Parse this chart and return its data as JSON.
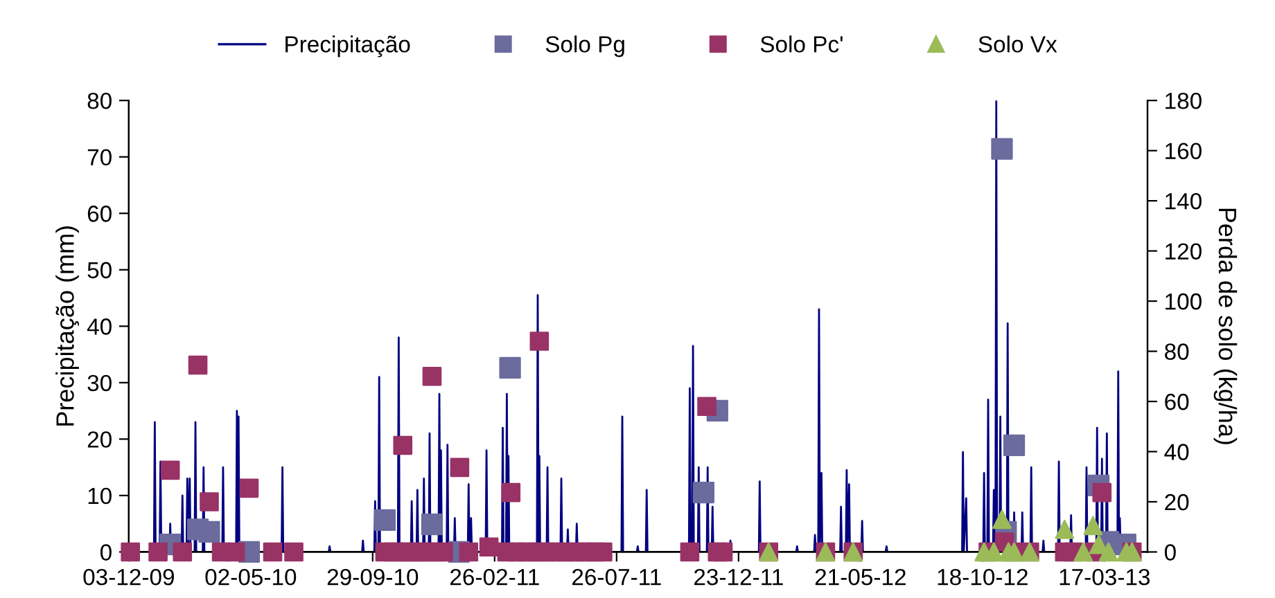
{
  "chart_data": {
    "type": "line",
    "ylabel": "Precipitação (mm)",
    "y2label": "Perda de solo (kg/ha)",
    "xlim": [
      "2009-12-03",
      "2013-05-09"
    ],
    "xticks": [
      {
        "value": "2009-12-03",
        "label": "03-12-09"
      },
      {
        "value": "2010-05-02",
        "label": "02-05-10"
      },
      {
        "value": "2010-09-29",
        "label": "29-09-10"
      },
      {
        "value": "2011-02-26",
        "label": "26-02-11"
      },
      {
        "value": "2011-07-26",
        "label": "26-07-11"
      },
      {
        "value": "2011-12-23",
        "label": "23-12-11"
      },
      {
        "value": "2012-05-21",
        "label": "21-05-12"
      },
      {
        "value": "2012-10-18",
        "label": "18-10-12"
      },
      {
        "value": "2013-03-17",
        "label": "17-03-13"
      }
    ],
    "ylim": [
      0,
      80
    ],
    "yticks": [
      0,
      10,
      20,
      30,
      40,
      50,
      60,
      70,
      80
    ],
    "y2lim": [
      0,
      180
    ],
    "y2ticks": [
      0,
      20,
      40,
      60,
      80,
      100,
      120,
      140,
      160,
      180
    ],
    "grid": false,
    "legend": "top",
    "series": [
      {
        "name": "Precipitação",
        "color": "#000080",
        "marker": "none",
        "line_style": "solid",
        "x": [
          "2009-12-03",
          "2010-01-03",
          "2010-01-04",
          "2010-01-05",
          "2010-01-10",
          "2010-01-11",
          "2010-01-12",
          "2010-01-22",
          "2010-01-23",
          "2010-01-24",
          "2010-02-06",
          "2010-02-07",
          "2010-02-08",
          "2010-02-12",
          "2010-02-13",
          "2010-02-14",
          "2010-02-16",
          "2010-02-17",
          "2010-02-22",
          "2010-02-23",
          "2010-02-24",
          "2010-03-04",
          "2010-03-05",
          "2010-03-06",
          "2010-03-28",
          "2010-03-29",
          "2010-03-30",
          "2010-04-14",
          "2010-04-15",
          "2010-04-16",
          "2010-04-17",
          "2010-04-18",
          "2010-06-09",
          "2010-06-10",
          "2010-06-11",
          "2010-08-06",
          "2010-08-07",
          "2010-08-08",
          "2010-09-16",
          "2010-09-17",
          "2010-09-18",
          "2010-10-01",
          "2010-10-02",
          "2010-10-03",
          "2010-10-06",
          "2010-10-07",
          "2010-10-08",
          "2010-10-30",
          "2010-10-31",
          "2010-11-01",
          "2010-11-15",
          "2010-11-16",
          "2010-11-17",
          "2010-11-22",
          "2010-11-23",
          "2010-11-24",
          "2010-11-30",
          "2010-12-01",
          "2010-12-02",
          "2010-12-07",
          "2010-12-08",
          "2010-12-09",
          "2010-12-19",
          "2010-12-20",
          "2010-12-21",
          "2010-12-22",
          "2010-12-23",
          "2010-12-29",
          "2010-12-30",
          "2010-12-31",
          "2011-01-07",
          "2011-01-08",
          "2011-01-09",
          "2011-01-24",
          "2011-01-25",
          "2011-01-26",
          "2011-01-27",
          "2011-01-28",
          "2011-01-29",
          "2011-02-15",
          "2011-02-16",
          "2011-02-17",
          "2011-03-07",
          "2011-03-08",
          "2011-03-09",
          "2011-03-12",
          "2011-03-13",
          "2011-03-14",
          "2011-03-15",
          "2011-03-16",
          "2011-04-19",
          "2011-04-20",
          "2011-04-21",
          "2011-04-22",
          "2011-04-23",
          "2011-05-01",
          "2011-05-02",
          "2011-05-03",
          "2011-05-18",
          "2011-05-19",
          "2011-05-20",
          "2011-05-26",
          "2011-05-27",
          "2011-05-28",
          "2011-06-06",
          "2011-06-07",
          "2011-06-08",
          "2011-08-01",
          "2011-08-02",
          "2011-08-03",
          "2011-08-20",
          "2011-08-21",
          "2011-08-22",
          "2011-08-31",
          "2011-09-01",
          "2011-09-02",
          "2011-10-23",
          "2011-10-24",
          "2011-10-25",
          "2011-10-27",
          "2011-10-28",
          "2011-10-29",
          "2011-11-03",
          "2011-11-04",
          "2011-11-05",
          "2011-11-14",
          "2011-11-15",
          "2011-11-16",
          "2011-11-20",
          "2011-11-21",
          "2011-11-22",
          "2011-12-12",
          "2011-12-13",
          "2011-12-14",
          "2012-01-17",
          "2012-01-18",
          "2012-01-19",
          "2012-03-03",
          "2012-03-04",
          "2012-03-05",
          "2012-03-25",
          "2012-03-26",
          "2012-03-27",
          "2012-03-30",
          "2012-03-31",
          "2012-04-01",
          "2012-04-03",
          "2012-04-04",
          "2012-04-26",
          "2012-04-27",
          "2012-04-28",
          "2012-05-03",
          "2012-05-04",
          "2012-05-05",
          "2012-05-07",
          "2012-05-08",
          "2012-05-22",
          "2012-05-23",
          "2012-05-24",
          "2012-06-21",
          "2012-06-22",
          "2012-06-23",
          "2012-09-23",
          "2012-09-24",
          "2012-09-25",
          "2012-09-28",
          "2012-09-29",
          "2012-10-19",
          "2012-10-20",
          "2012-10-21",
          "2012-10-24",
          "2012-10-25",
          "2012-10-26",
          "2012-10-31",
          "2012-11-01",
          "2012-11-02",
          "2012-11-03",
          "2012-11-04",
          "2012-11-05",
          "2012-11-08",
          "2012-11-09",
          "2012-11-10",
          "2012-11-17",
          "2012-11-18",
          "2012-11-19",
          "2012-11-25",
          "2012-11-26",
          "2012-11-27",
          "2012-12-05",
          "2012-12-06",
          "2012-12-07",
          "2012-12-16",
          "2012-12-17",
          "2012-12-18",
          "2012-12-31",
          "2013-01-01",
          "2013-01-02",
          "2013-01-19",
          "2013-01-20",
          "2013-01-21",
          "2013-02-03",
          "2013-02-04",
          "2013-02-05",
          "2013-02-22",
          "2013-02-23",
          "2013-02-24",
          "2013-03-07",
          "2013-03-08",
          "2013-03-09",
          "2013-03-13",
          "2013-03-14",
          "2013-03-15",
          "2013-03-19",
          "2013-03-20",
          "2013-03-21",
          "2013-03-26",
          "2013-03-27",
          "2013-03-28",
          "2013-04-02",
          "2013-04-03",
          "2013-04-04",
          "2013-04-05",
          "2013-04-06",
          "2013-04-20"
        ],
        "values": [
          0,
          0,
          23,
          0,
          0,
          16,
          0,
          0,
          5,
          0,
          0,
          10,
          0,
          0,
          13,
          0,
          13,
          0,
          0,
          23,
          0,
          0,
          15,
          0,
          0,
          15,
          0,
          0,
          25,
          0,
          24,
          0,
          0,
          15,
          0,
          0,
          1,
          0,
          0,
          2,
          0,
          0,
          9,
          0,
          0,
          31,
          0,
          0,
          38,
          0,
          0,
          9,
          0,
          0,
          11,
          0,
          0,
          13,
          0,
          0,
          21,
          0,
          0,
          28,
          0,
          18,
          0,
          0,
          19,
          0,
          0,
          6,
          0,
          0,
          12,
          0,
          0,
          6,
          0,
          0,
          18,
          0,
          0,
          22,
          0,
          0,
          28,
          0,
          17,
          0,
          0,
          45.5,
          0,
          17,
          0,
          0,
          15,
          0,
          0,
          13,
          0,
          0,
          4,
          0,
          0,
          5,
          0,
          0,
          24,
          0,
          0,
          1,
          0,
          0,
          11,
          0,
          0,
          29,
          0,
          0,
          36.5,
          0,
          0,
          15,
          0,
          0,
          15,
          0,
          0,
          8,
          0,
          0,
          2,
          0,
          0,
          12.5,
          0,
          0,
          1,
          0,
          0,
          3,
          0,
          0,
          43,
          0,
          14,
          0,
          0,
          8,
          0,
          0,
          14.5,
          0,
          12,
          0,
          0,
          5.5,
          0,
          0,
          1,
          0,
          0,
          17.7,
          0,
          9.5,
          0,
          0,
          14,
          0,
          0,
          27,
          0,
          0,
          11,
          0,
          0,
          80,
          0,
          0,
          24,
          0,
          0,
          40.5,
          0,
          0,
          7,
          0,
          0,
          7,
          0,
          0,
          15,
          0,
          0,
          2,
          0,
          0,
          16,
          0,
          0,
          6.5,
          0,
          0,
          15,
          0,
          0,
          22,
          0,
          0,
          16.5,
          0,
          0,
          21,
          0,
          0,
          3,
          0,
          0,
          32,
          0,
          6,
          0,
          0
        ]
      },
      {
        "name": "Solo Pg",
        "type": "scatter",
        "axis": "y2",
        "color": "#6b6b9e",
        "marker": "square",
        "x": [
          "2010-01-23",
          "2010-02-26",
          "2010-03-12",
          "2010-04-30",
          "2010-10-14",
          "2010-12-11",
          "2011-01-13",
          "2011-03-17",
          "2011-11-10",
          "2011-11-27",
          "2012-11-11",
          "2012-11-16",
          "2012-11-26",
          "2013-03-10",
          "2013-03-22",
          "2013-04-12"
        ],
        "values": [
          3,
          9,
          8,
          0,
          12.7,
          11,
          0,
          73.4,
          23.7,
          56.3,
          160.7,
          8,
          42.5,
          26.5,
          4,
          3
        ]
      },
      {
        "name": "Solo Pc'",
        "type": "scatter",
        "axis": "y2",
        "color": "#993366",
        "marker": "square",
        "x": [
          "2009-12-05",
          "2010-01-08",
          "2010-01-23",
          "2010-02-07",
          "2010-02-26",
          "2010-03-12",
          "2010-03-27",
          "2010-04-13",
          "2010-04-30",
          "2010-05-29",
          "2010-06-24",
          "2010-10-14",
          "2010-10-25",
          "2010-11-04",
          "2010-11-05",
          "2010-11-14",
          "2010-11-24",
          "2010-12-04",
          "2010-12-11",
          "2010-12-15",
          "2010-12-25",
          "2011-01-14",
          "2011-01-25",
          "2011-02-19",
          "2011-03-13",
          "2011-03-18",
          "2011-03-25",
          "2011-04-06",
          "2011-04-18",
          "2011-04-22",
          "2011-04-30",
          "2011-05-12",
          "2011-05-24",
          "2011-06-05",
          "2011-06-17",
          "2011-06-29",
          "2011-07-09",
          "2011-10-24",
          "2011-11-14",
          "2011-11-27",
          "2011-12-04",
          "2012-01-29",
          "2012-04-08",
          "2012-05-12",
          "2012-10-25",
          "2012-11-14",
          "2012-11-23",
          "2012-12-15",
          "2013-01-27",
          "2013-02-07",
          "2013-03-05",
          "2013-03-14",
          "2013-04-20"
        ],
        "values": [
          0,
          0,
          32.6,
          0,
          74.5,
          20,
          0,
          0,
          25.4,
          0,
          0,
          0,
          0,
          0,
          42.5,
          0,
          0,
          0,
          70,
          0,
          0,
          33.7,
          0,
          2,
          0,
          23.7,
          0,
          0,
          0,
          84,
          0,
          0,
          0,
          0,
          0,
          0,
          0,
          0,
          58,
          0,
          0,
          0,
          0,
          0,
          0,
          4,
          0,
          0,
          0,
          0,
          0,
          23.7,
          0
        ]
      },
      {
        "name": "Solo Vx",
        "type": "scatter",
        "axis": "y2",
        "color": "#9bbb59",
        "marker": "triangle",
        "x": [
          "2012-01-29",
          "2012-04-08",
          "2012-05-12",
          "2012-10-20",
          "2012-11-01",
          "2012-11-11",
          "2012-11-19",
          "2012-11-26",
          "2012-12-15",
          "2013-01-27",
          "2013-02-19",
          "2013-03-03",
          "2013-03-10",
          "2013-03-22",
          "2013-04-13",
          "2013-04-20"
        ],
        "values": [
          0,
          0,
          0,
          0,
          0,
          13,
          0,
          0,
          0,
          9,
          0,
          10.5,
          3,
          0,
          0,
          0
        ]
      }
    ]
  }
}
